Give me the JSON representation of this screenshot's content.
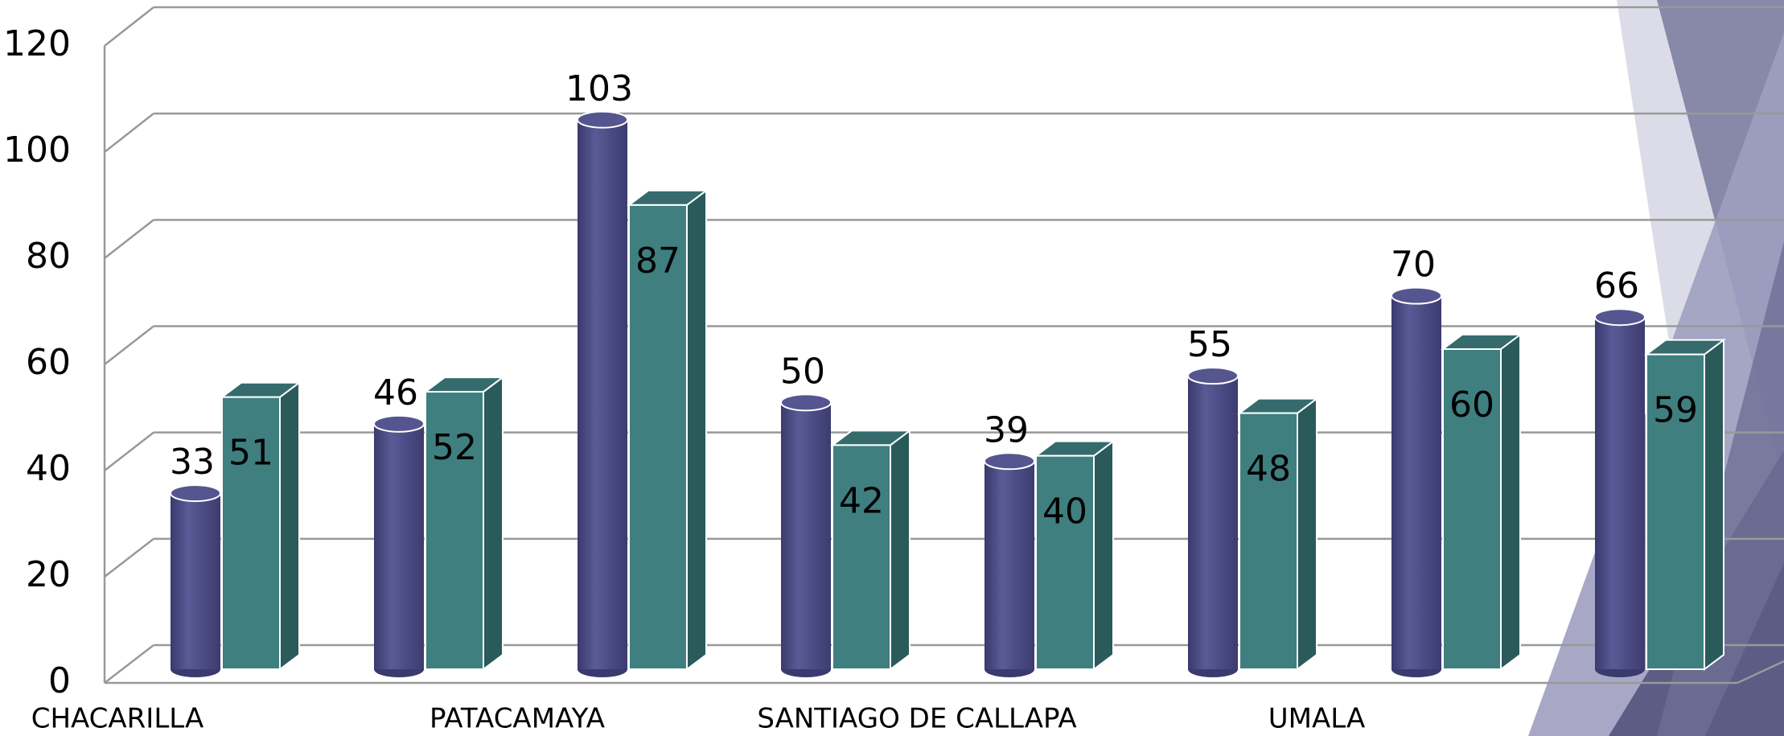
{
  "chart_data": {
    "type": "bar3d",
    "categories": [
      "CHACARILLA",
      null,
      "PATACAMAYA",
      null,
      "SANTIAGO DE CALLAPA",
      null,
      "UMALA",
      null
    ],
    "series": [
      {
        "color": "#55558f",
        "values": [
          33,
          46,
          103,
          50,
          39,
          55,
          70,
          66
        ]
      },
      {
        "color": "#3f7f80",
        "values": [
          51,
          52,
          87,
          42,
          40,
          48,
          60,
          59
        ]
      }
    ],
    "ylim": [
      0,
      120
    ],
    "yticks": [
      0,
      20,
      40,
      60,
      80,
      100,
      120
    ],
    "grid": true
  }
}
